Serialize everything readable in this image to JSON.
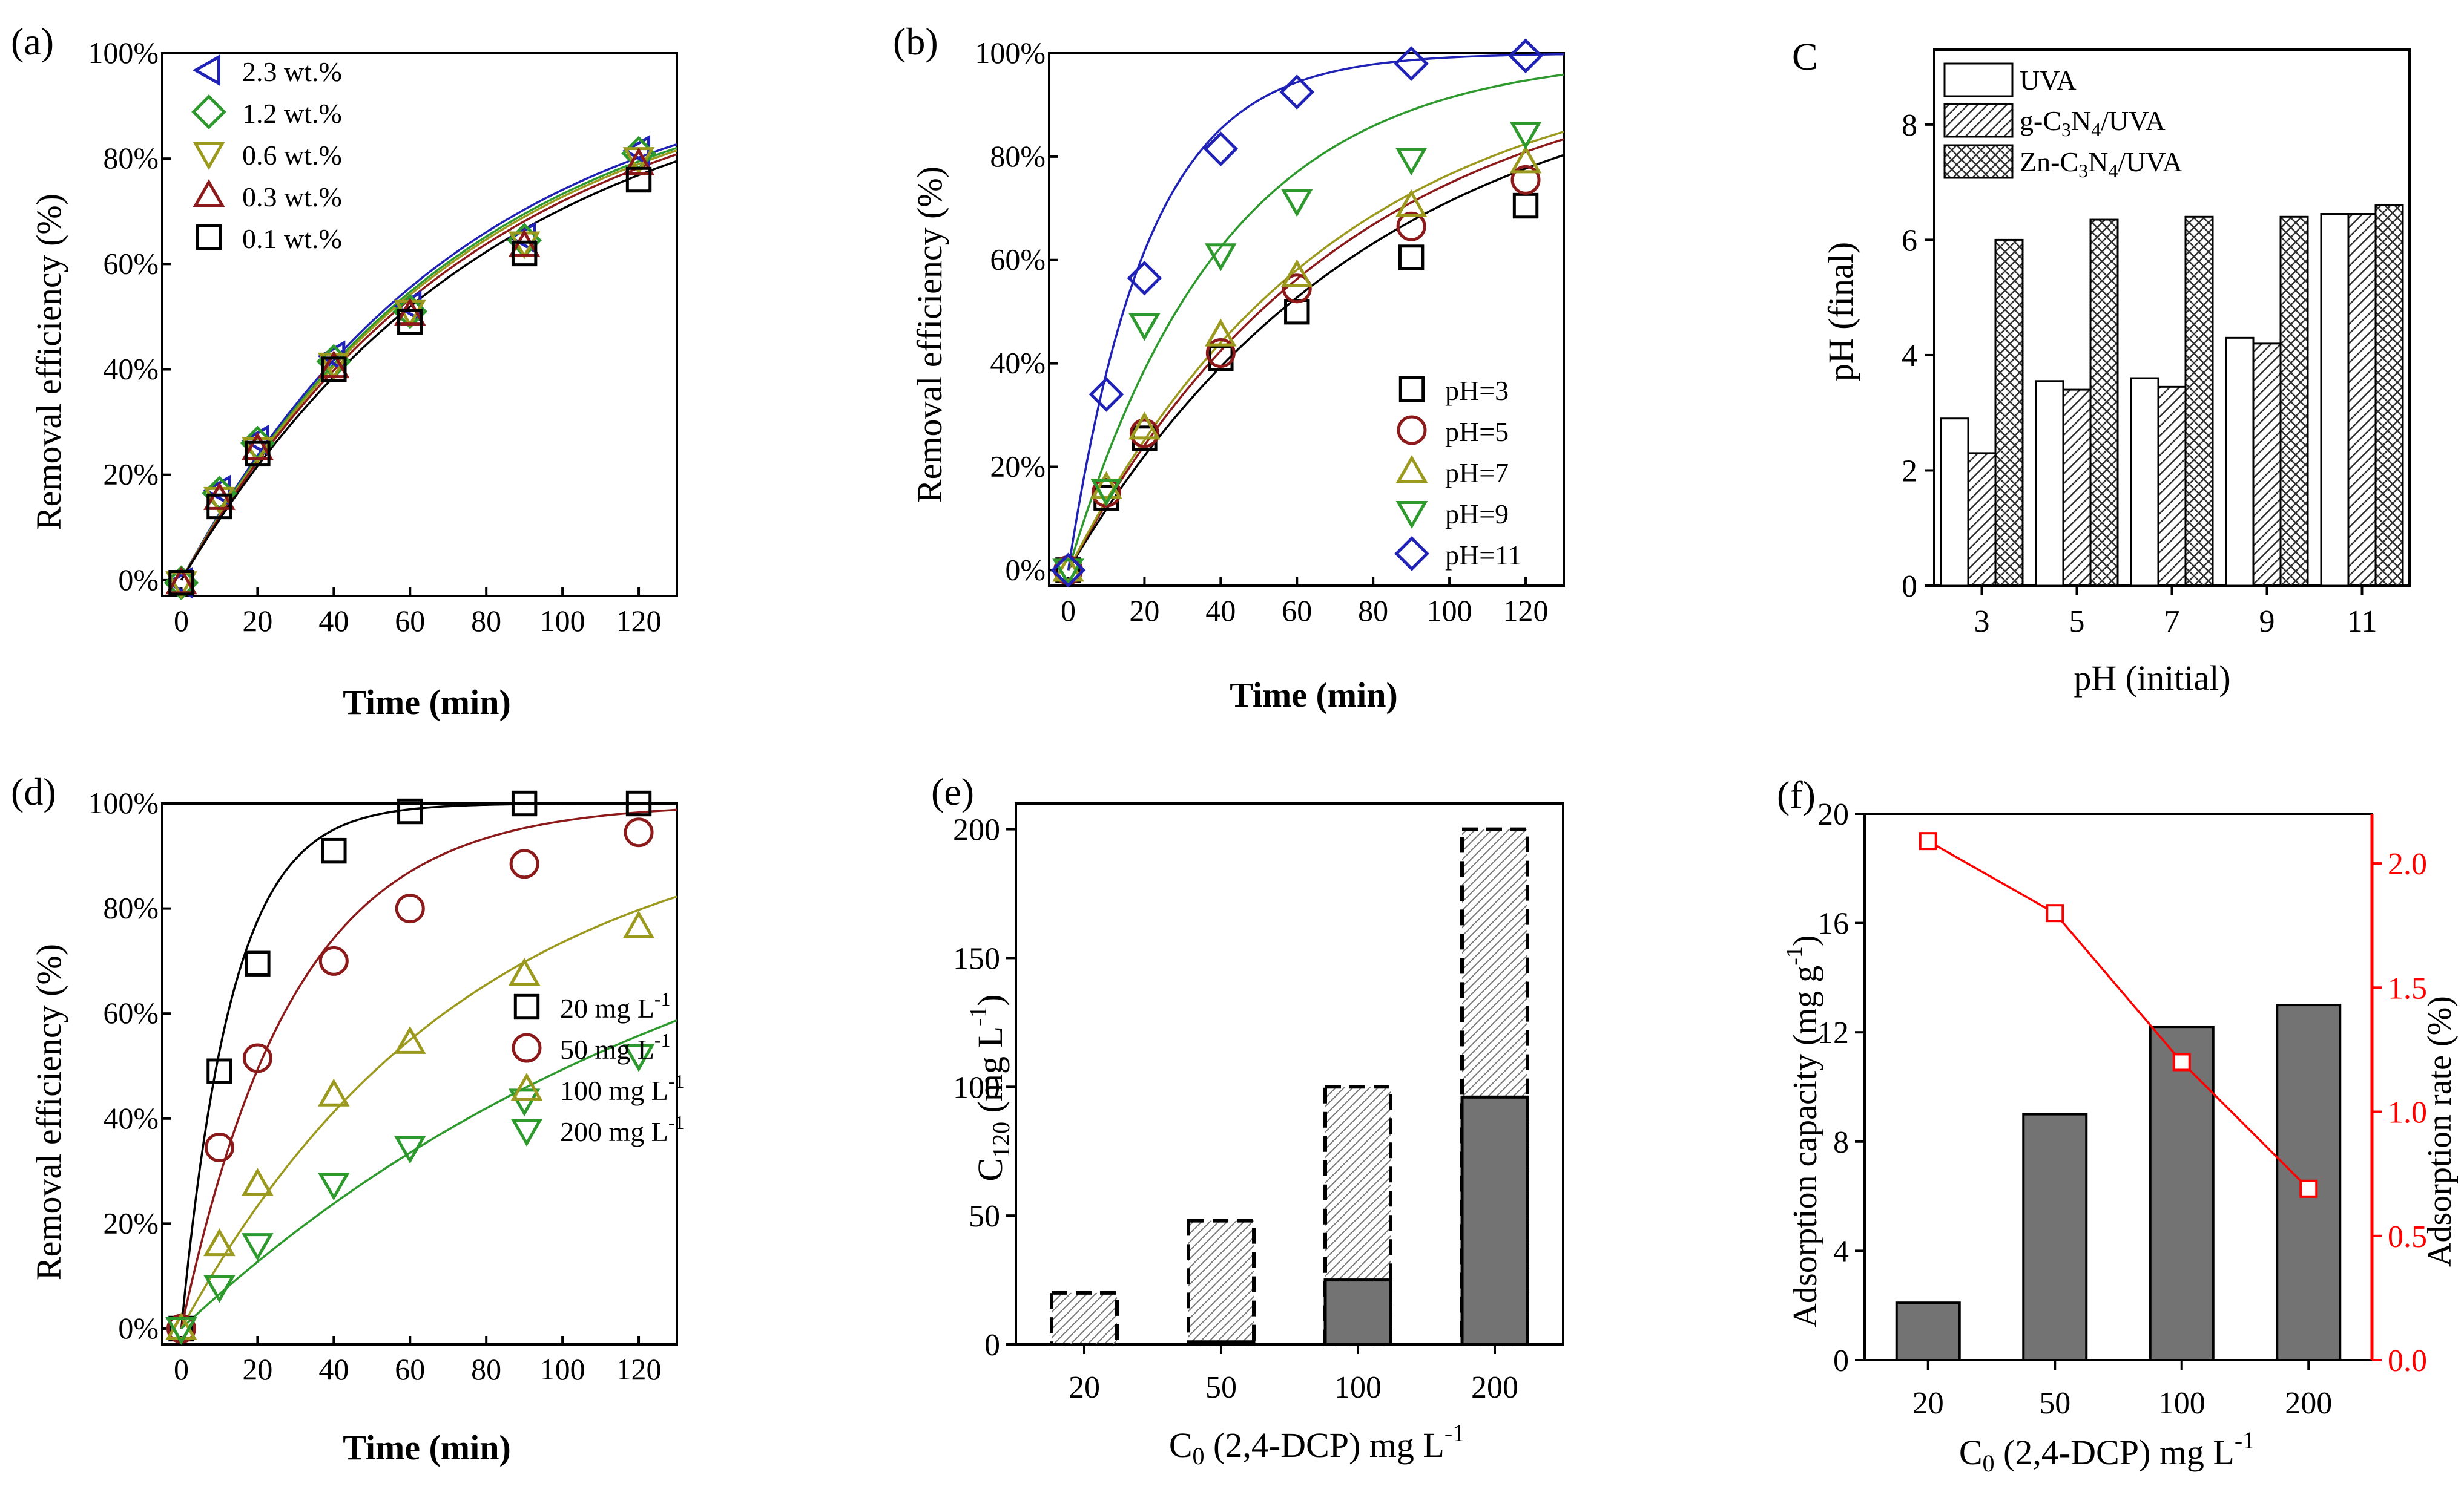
{
  "chart_data": [
    {
      "panel": "(a)",
      "type": "scatter",
      "xlabel": "Time (min)",
      "ylabel": "Removal efficiency (%)",
      "xlim": [
        -5,
        130
      ],
      "ylim": [
        -3,
        100
      ],
      "xticks": [
        0,
        20,
        40,
        60,
        80,
        100,
        120
      ],
      "yticks": [
        0,
        20,
        40,
        60,
        80,
        100
      ],
      "yticklabels": [
        "0%",
        "20%",
        "40%",
        "60%",
        "80%",
        "100%"
      ],
      "legend_position": "top-left",
      "x": [
        0,
        10,
        20,
        40,
        60,
        90,
        120
      ],
      "series": [
        {
          "name": "2.3 wt.%",
          "marker": "triangle-left",
          "color": "#1f22b5",
          "values": [
            -0.5,
            17,
            26.5,
            42.5,
            52,
            65,
            81.5
          ],
          "fit_k": 0.0135
        },
        {
          "name": "1.2 wt.%",
          "marker": "diamond",
          "color": "#2e9a2e",
          "values": [
            -0.5,
            16.5,
            26,
            41.5,
            51,
            64.5,
            81
          ],
          "fit_k": 0.0132
        },
        {
          "name": "0.6 wt.%",
          "marker": "triangle-down",
          "color": "#9c9a1e",
          "values": [
            -0.5,
            15.5,
            25,
            41,
            51,
            64,
            80
          ],
          "fit_k": 0.013
        },
        {
          "name": "0.3 wt.%",
          "marker": "triangle-up",
          "color": "#8c1a1a",
          "values": [
            -0.5,
            15.5,
            25,
            40.5,
            50.5,
            63.5,
            79
          ],
          "fit_k": 0.0127
        },
        {
          "name": "0.1 wt.%",
          "marker": "square",
          "color": "#000000",
          "values": [
            -0.5,
            14,
            24,
            40,
            49,
            62,
            76
          ],
          "fit_k": 0.0122
        }
      ]
    },
    {
      "panel": "(b)",
      "type": "scatter",
      "xlabel": "Time (min)",
      "ylabel": "Removal efficiency (%)",
      "xlim": [
        -5,
        130
      ],
      "ylim": [
        -3,
        100
      ],
      "xticks": [
        0,
        20,
        40,
        60,
        80,
        100,
        120
      ],
      "yticks": [
        0,
        20,
        40,
        60,
        80,
        100
      ],
      "yticklabels": [
        "0%",
        "20%",
        "40%",
        "60%",
        "80%",
        "100%"
      ],
      "legend_position": "bottom-right",
      "x": [
        0,
        10,
        20,
        40,
        60,
        90,
        120
      ],
      "series": [
        {
          "name": "pH=3",
          "marker": "square",
          "color": "#000000",
          "values": [
            0,
            14,
            25.5,
            41,
            50,
            60.5,
            70.5
          ],
          "fit_k": 0.0125
        },
        {
          "name": "pH=5",
          "marker": "circle",
          "color": "#8c1a1a",
          "values": [
            0,
            15,
            26.5,
            42,
            54.5,
            66.5,
            75.5
          ],
          "fit_k": 0.0138
        },
        {
          "name": "pH=7",
          "marker": "triangle-up",
          "color": "#9c9a1e",
          "values": [
            0,
            16,
            27.5,
            45.5,
            57,
            70.5,
            79
          ],
          "fit_k": 0.0145
        },
        {
          "name": "pH=9",
          "marker": "triangle-down",
          "color": "#2e9a2e",
          "values": [
            0,
            15.5,
            47.5,
            61,
            71.5,
            79.5,
            84.5
          ],
          "fit_k": 0.0245
        },
        {
          "name": "pH=11",
          "marker": "diamond",
          "color": "#1f22b5",
          "values": [
            0,
            34,
            56.5,
            81.5,
            92.5,
            98,
            99.5
          ],
          "fit_k": 0.048
        }
      ]
    },
    {
      "panel": "(c)",
      "type": "bar",
      "xlabel": "pH (initial)",
      "ylabel": "pH (final)",
      "ylim": [
        0,
        9.3
      ],
      "yticks": [
        0,
        2,
        4,
        6,
        8
      ],
      "categories": [
        "3",
        "5",
        "7",
        "9",
        "11"
      ],
      "legend_position": "top-left",
      "series": [
        {
          "name": "UVA",
          "pattern": "open",
          "values": [
            2.9,
            3.55,
            3.6,
            4.3,
            6.45
          ]
        },
        {
          "name": "g-C3N4/UVA",
          "pattern": "hatch",
          "values": [
            2.3,
            3.4,
            3.45,
            4.2,
            6.45
          ]
        },
        {
          "name": "Zn-C3N4/UVA",
          "pattern": "crosshatch",
          "values": [
            6.0,
            6.35,
            6.4,
            6.4,
            6.6
          ]
        }
      ]
    },
    {
      "panel": "(d)",
      "type": "scatter",
      "xlabel": "Time (min)",
      "ylabel": "Removal efficiency (%)",
      "xlim": [
        -5,
        130
      ],
      "ylim": [
        -3,
        100
      ],
      "xticks": [
        0,
        20,
        40,
        60,
        80,
        100,
        120
      ],
      "yticks": [
        0,
        20,
        40,
        60,
        80,
        100
      ],
      "yticklabels": [
        "0%",
        "20%",
        "40%",
        "60%",
        "80%",
        "100%"
      ],
      "legend_position": "bottom-right",
      "x": [
        0,
        10,
        20,
        40,
        60,
        90,
        120
      ],
      "series": [
        {
          "name": "20 mg L",
          "marker": "square",
          "color": "#000000",
          "values": [
            0,
            49,
            69.5,
            91,
            98.5,
            100,
            100
          ],
          "fit_k": 0.075
        },
        {
          "name": "50 mg L",
          "marker": "circle",
          "color": "#8c1a1a",
          "values": [
            0,
            34.5,
            51.5,
            70,
            80,
            88.5,
            94.5
          ],
          "fit_k": 0.034
        },
        {
          "name": "100 mg L",
          "marker": "triangle-up",
          "color": "#9c9a1e",
          "values": [
            0,
            16,
            27.5,
            44.5,
            54.5,
            67.5,
            76.5
          ],
          "fit_k": 0.0133
        },
        {
          "name": "200 mg L",
          "marker": "triangle-down",
          "color": "#2e9a2e",
          "values": [
            0,
            8,
            16,
            27.5,
            34.5,
            43.5,
            52
          ],
          "fit_k": 0.0068
        }
      ]
    },
    {
      "panel": "(e)",
      "type": "bar",
      "xlabel": "C0 (2,4-DCP) mg L",
      "ylabel": "C120 (mg L)",
      "ylim": [
        0,
        210
      ],
      "yticks": [
        0,
        50,
        100,
        150,
        200
      ],
      "categories": [
        "20",
        "50",
        "100",
        "200"
      ],
      "series": [
        {
          "name": "initial (dashed, hatched)",
          "values": [
            20,
            48,
            100,
            200
          ]
        },
        {
          "name": "residual (solid, grey)",
          "values": [
            0,
            1,
            25,
            96
          ]
        }
      ]
    },
    {
      "panel": "(f)",
      "type": "bar+line",
      "xlabel": "C0 (2,4-DCP) mg L",
      "ylabel_left": "Adsorption capacity (mg g)",
      "ylabel_right": "Adsorption rate (%)",
      "ylim_left": [
        0,
        20
      ],
      "ylim_right": [
        0,
        2.2
      ],
      "yticks_left": [
        0,
        4,
        8,
        12,
        16,
        20
      ],
      "yticks_right": [
        "0.0",
        "0.5",
        "1.0",
        "1.5",
        "2.0"
      ],
      "categories": [
        "20",
        "50",
        "100",
        "200"
      ],
      "series": [
        {
          "name": "Adsorption capacity",
          "axis": "left",
          "values": [
            2.1,
            9.0,
            12.2,
            13.0
          ]
        },
        {
          "name": "Adsorption rate",
          "axis": "right",
          "color": "#ff0000",
          "values": [
            2.09,
            1.8,
            1.2,
            0.69
          ]
        }
      ]
    }
  ],
  "labels": {
    "a": "(a)",
    "b": "(b)",
    "c": "C",
    "d": "(d)",
    "e": "(e)",
    "f": "(f)",
    "time": "Time (min)",
    "removal": "Removal efficiency (%)",
    "ph_final": "pH (final)",
    "ph_initial": "pH (initial)",
    "c3n4_g": "g-C",
    "c3n4_zn": "Zn-C",
    "sub3": "3",
    "sub4": "4",
    "n": "N",
    "uva_suffix": "/UVA",
    "uva": "UVA",
    "mgl": "mg L",
    "sup_neg1": "-1",
    "sub0": "0",
    "sub120": "120",
    "c0_rest": " (2,4-DCP) mg L",
    "c120_rest": " (mg L",
    "paren_close": ")",
    "ads_cap": "Adsorption capacity (mg g",
    "ads_rate": "Adsorption rate (%)"
  },
  "colors": {
    "axis": "#000000",
    "bar_grey": "#737373",
    "hatch": "#555555",
    "red_axis": "#ff0000"
  }
}
